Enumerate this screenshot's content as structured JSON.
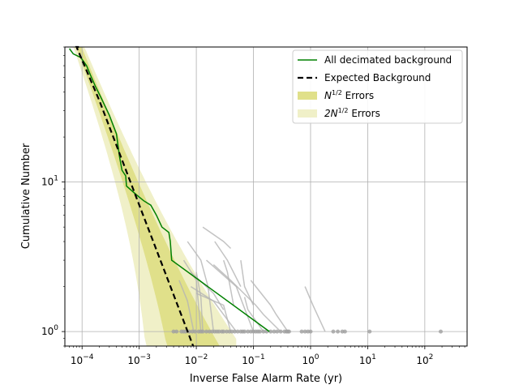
{
  "chart_data": {
    "type": "line",
    "xlabel": "Inverse False Alarm Rate (yr)",
    "ylabel": "Cumulative Number",
    "x_scale": "log",
    "y_scale": "log",
    "xlim": [
      5e-05,
      550
    ],
    "ylim": [
      0.8,
      80
    ],
    "grid": true,
    "legend_position": "top-right",
    "x_ticks": [
      {
        "value": 0.0001,
        "base": "10",
        "exp": "−4"
      },
      {
        "value": 0.001,
        "base": "10",
        "exp": "−3"
      },
      {
        "value": 0.01,
        "base": "10",
        "exp": "−2"
      },
      {
        "value": 0.1,
        "base": "10",
        "exp": "−1"
      },
      {
        "value": 1,
        "base": "10",
        "exp": "0"
      },
      {
        "value": 10,
        "base": "10",
        "exp": "1"
      },
      {
        "value": 100,
        "base": "10",
        "exp": "2"
      }
    ],
    "y_ticks": [
      {
        "value": 1,
        "base": "10",
        "exp": "0"
      },
      {
        "value": 10,
        "base": "10",
        "exp": "1"
      }
    ],
    "legend": [
      {
        "key": "decimated",
        "label": "All decimated background",
        "style": "line",
        "color": "#008000"
      },
      {
        "key": "expected",
        "label": "Expected Background",
        "style": "dashed",
        "color": "#000000"
      },
      {
        "key": "err1",
        "label_main": "N",
        "label_sup": "1/2",
        "label_tail": " Errors",
        "style": "patch",
        "color": "#e0e08a"
      },
      {
        "key": "err2",
        "label_prefix": "2N",
        "label_sup": "1/2",
        "label_tail": " Errors",
        "style": "patch",
        "color": "#f0f0c8"
      }
    ],
    "series": [
      {
        "name": "All decimated background",
        "color": "#008000",
        "points": [
          [
            6e-05,
            78
          ],
          [
            7e-05,
            72
          ],
          [
            9.5e-05,
            68
          ],
          [
            0.00012,
            60
          ],
          [
            0.00014,
            52
          ],
          [
            0.00017,
            44
          ],
          [
            0.00022,
            36
          ],
          [
            0.0003,
            28
          ],
          [
            0.0004,
            21
          ],
          [
            0.00045,
            15
          ],
          [
            0.0005,
            12
          ],
          [
            0.00058,
            11
          ],
          [
            0.0006,
            9.4
          ],
          [
            0.0009,
            8.2
          ],
          [
            0.0012,
            7.5
          ],
          [
            0.0016,
            7
          ],
          [
            0.002,
            6
          ],
          [
            0.0025,
            5
          ],
          [
            0.0033,
            4.6
          ],
          [
            0.0035,
            4
          ],
          [
            0.0037,
            3
          ],
          [
            0.19,
            1
          ]
        ]
      },
      {
        "name": "Expected Background",
        "color": "#000000",
        "points": [
          [
            8.8e-05,
            80
          ],
          [
            8e-05,
            80
          ],
          [
            0.0002,
            35.2
          ],
          [
            0.0005,
            14.1
          ],
          [
            0.001,
            7.04
          ],
          [
            0.002,
            3.52
          ],
          [
            0.005,
            1.41
          ],
          [
            0.0088,
            0.8
          ]
        ]
      }
    ],
    "gray_curves": [
      [
        [
          0.007,
          4
        ],
        [
          0.012,
          3
        ],
        [
          0.016,
          2
        ],
        [
          0.02,
          1
        ]
      ],
      [
        [
          0.013,
          5
        ],
        [
          0.03,
          4
        ],
        [
          0.04,
          3.6
        ]
      ],
      [
        [
          0.021,
          4
        ],
        [
          0.035,
          3
        ],
        [
          0.06,
          2
        ]
      ],
      [
        [
          0.06,
          3
        ],
        [
          0.07,
          2
        ],
        [
          0.1,
          1.5
        ]
      ],
      [
        [
          0.006,
          3
        ],
        [
          0.01,
          2.2
        ],
        [
          0.012,
          1
        ]
      ],
      [
        [
          0.008,
          2.5
        ],
        [
          0.02,
          1.8
        ],
        [
          0.03,
          1.4
        ]
      ],
      [
        [
          0.015,
          3
        ],
        [
          0.05,
          2
        ],
        [
          0.1,
          1
        ]
      ],
      [
        [
          0.02,
          2.8
        ],
        [
          0.04,
          2.2
        ],
        [
          0.11,
          1.5
        ],
        [
          0.15,
          1.3
        ],
        [
          0.3,
          1
        ]
      ],
      [
        [
          0.005,
          2.2
        ],
        [
          0.007,
          1.6
        ],
        [
          0.009,
          1
        ]
      ],
      [
        [
          0.008,
          2
        ],
        [
          0.02,
          1.6
        ],
        [
          0.05,
          1
        ]
      ],
      [
        [
          0.07,
          1.7
        ],
        [
          0.08,
          1.4
        ],
        [
          0.15,
          1
        ]
      ],
      [
        [
          0.01,
          1.8
        ],
        [
          0.03,
          1.5
        ],
        [
          0.04,
          1
        ]
      ],
      [
        [
          0.8,
          2
        ],
        [
          1.1,
          1.5
        ],
        [
          1.8,
          1
        ]
      ],
      [
        [
          0.09,
          2.2
        ],
        [
          0.2,
          1.5
        ],
        [
          0.25,
          1.3
        ],
        [
          0.4,
          1
        ]
      ],
      [
        [
          0.01,
          2.5
        ],
        [
          0.012,
          1.7
        ],
        [
          0.013,
          1
        ]
      ],
      [
        [
          0.03,
          3
        ],
        [
          0.035,
          2.5
        ],
        [
          0.045,
          1.5
        ]
      ]
    ],
    "gray_points_at_1": [
      0.004,
      0.0045,
      0.0055,
      0.006,
      0.0065,
      0.0075,
      0.0085,
      0.0095,
      0.011,
      0.012,
      0.013,
      0.015,
      0.017,
      0.019,
      0.021,
      0.023,
      0.025,
      0.028,
      0.03,
      0.034,
      0.038,
      0.042,
      0.047,
      0.053,
      0.06,
      0.065,
      0.07,
      0.08,
      0.09,
      0.1,
      0.11,
      0.12,
      0.13,
      0.15,
      0.17,
      0.2,
      0.23,
      0.26,
      0.3,
      0.35,
      0.38,
      0.4,
      0.42,
      0.7,
      0.8,
      0.9,
      1.0,
      2.5,
      3.0,
      3.6,
      4.0,
      10.8,
      190
    ],
    "error_bands": [
      {
        "name": "2N^1/2 Errors",
        "color": "#f0f0c8",
        "factor": 2
      },
      {
        "name": "N^1/2 Errors",
        "color": "#e0e08a",
        "factor": 1
      }
    ]
  }
}
